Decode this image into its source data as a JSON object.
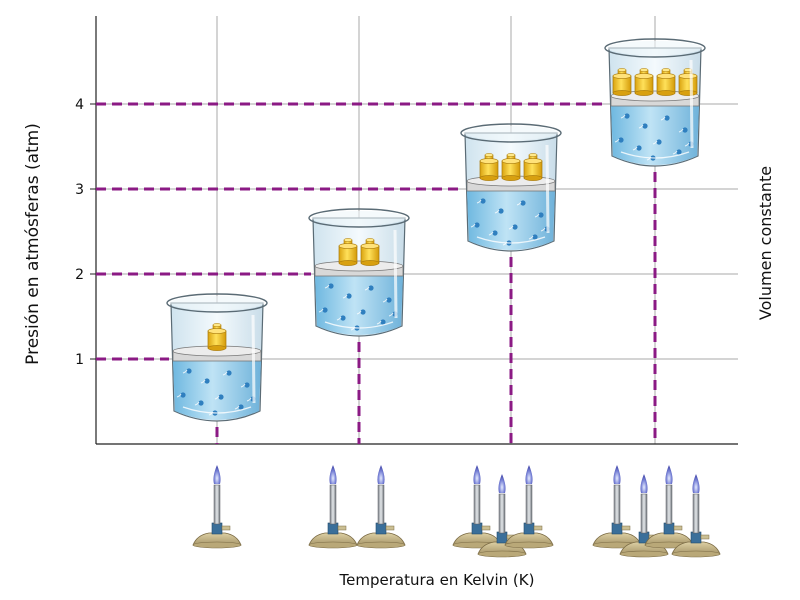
{
  "labels": {
    "y_axis": "Presión en atmósferas (atm)",
    "x_axis": "Temperatura en Kelvin (K)",
    "side_note": "Volumen constante"
  },
  "y_ticks": [
    "1",
    "2",
    "3",
    "4"
  ],
  "colors": {
    "guide": "#8b1a84",
    "grid": "#a8a8a8",
    "water": "#8fcbeb",
    "weight": "#f2c21a",
    "burner_base": "#c9ba8c"
  },
  "stages": [
    {
      "pressure": 1,
      "weights": 1,
      "burners": 1
    },
    {
      "pressure": 2,
      "weights": 2,
      "burners": 2
    },
    {
      "pressure": 3,
      "weights": 3,
      "burners": 3
    },
    {
      "pressure": 4,
      "weights": 4,
      "burners": 4
    }
  ]
}
